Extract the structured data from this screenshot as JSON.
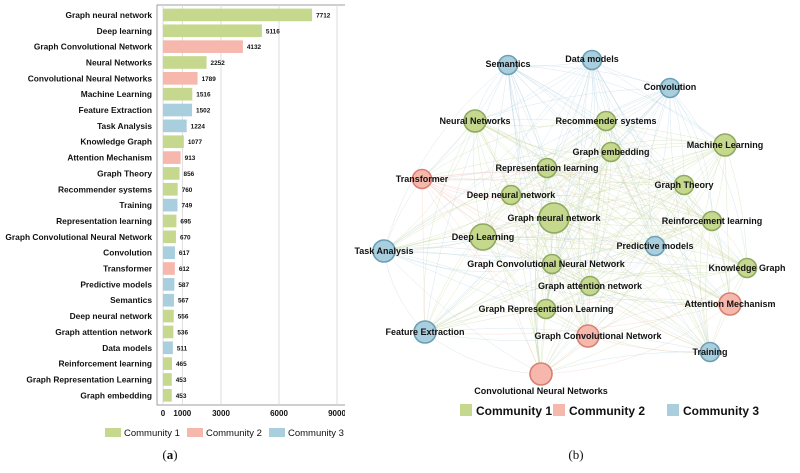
{
  "colors": {
    "c1": "#c5d88e",
    "c2": "#f6b8ad",
    "c3": "#a9cedd",
    "c1_stroke": "#8fa862",
    "c2_stroke": "#d97e72",
    "c3_stroke": "#6b9fb5"
  },
  "legend": [
    {
      "label": "Community 1",
      "community": 1
    },
    {
      "label": "Community 2",
      "community": 2
    },
    {
      "label": "Community 3",
      "community": 3
    }
  ],
  "captions": {
    "a_prefix": "(",
    "a": "a",
    "a_suffix": ")",
    "b": "(b)"
  },
  "chart_data": [
    {
      "type": "bar",
      "orientation": "horizontal",
      "categories": [
        "Graph neural network",
        "Deep learning",
        "Graph Convolutional Network",
        "Neural Networks",
        "Convolutional Neural Networks",
        "Machine Learning",
        "Feature Extraction",
        "Task Analysis",
        "Knowledge Graph",
        "Attention Mechanism",
        "Graph Theory",
        "Recommender systems",
        "Training",
        "Representation learning",
        "Graph Convolutional Neural Network",
        "Convolution",
        "Transformer",
        "Predictive models",
        "Semantics",
        "Deep neural network",
        "Graph attention network",
        "Data models",
        "Reinforcement learning",
        "Graph Representation Learning",
        "Graph embedding"
      ],
      "values": [
        7712,
        5116,
        4132,
        2252,
        1789,
        1516,
        1502,
        1224,
        1077,
        913,
        856,
        760,
        749,
        695,
        670,
        617,
        612,
        587,
        567,
        556,
        536,
        511,
        465,
        453,
        453
      ],
      "communities": [
        1,
        1,
        2,
        1,
        2,
        1,
        3,
        3,
        1,
        2,
        1,
        1,
        3,
        1,
        1,
        3,
        2,
        3,
        3,
        1,
        1,
        3,
        1,
        1,
        1
      ],
      "xticks": [
        0,
        1000,
        3000,
        6000,
        9000
      ],
      "xlim": [
        0,
        9000
      ],
      "grid": true
    },
    {
      "type": "network",
      "nodes": [
        {
          "label": "Semantics",
          "community": 3,
          "size": 1
        },
        {
          "label": "Data models",
          "community": 3,
          "size": 1
        },
        {
          "label": "Convolution",
          "community": 3,
          "size": 1
        },
        {
          "label": "Neural Networks",
          "community": 1,
          "size": 2
        },
        {
          "label": "Recommender systems",
          "community": 1,
          "size": 1
        },
        {
          "label": "Machine Learning",
          "community": 1,
          "size": 2
        },
        {
          "label": "Graph embedding",
          "community": 1,
          "size": 1
        },
        {
          "label": "Transformer",
          "community": 2,
          "size": 1
        },
        {
          "label": "Representation learning",
          "community": 1,
          "size": 1
        },
        {
          "label": "Graph Theory",
          "community": 1,
          "size": 1
        },
        {
          "label": "Deep neural network",
          "community": 1,
          "size": 1
        },
        {
          "label": "Graph neural network",
          "community": 1,
          "size": 4
        },
        {
          "label": "Reinforcement learning",
          "community": 1,
          "size": 1
        },
        {
          "label": "Task Analysis",
          "community": 3,
          "size": 2
        },
        {
          "label": "Deep Learning",
          "community": 1,
          "size": 3
        },
        {
          "label": "Predictive models",
          "community": 3,
          "size": 1
        },
        {
          "label": "Graph Convolutional Neural Network",
          "community": 1,
          "size": 1
        },
        {
          "label": "Knowledge Graph",
          "community": 1,
          "size": 1
        },
        {
          "label": "Graph attention network",
          "community": 1,
          "size": 1
        },
        {
          "label": "Attention Mechanism",
          "community": 2,
          "size": 2
        },
        {
          "label": "Graph Representation Learning",
          "community": 1,
          "size": 1
        },
        {
          "label": "Feature Extraction",
          "community": 3,
          "size": 2
        },
        {
          "label": "Graph Convolutional Network",
          "community": 2,
          "size": 2
        },
        {
          "label": "Training",
          "community": 3,
          "size": 1
        },
        {
          "label": "Convolutional Neural Networks",
          "community": 2,
          "size": 2
        }
      ]
    }
  ]
}
